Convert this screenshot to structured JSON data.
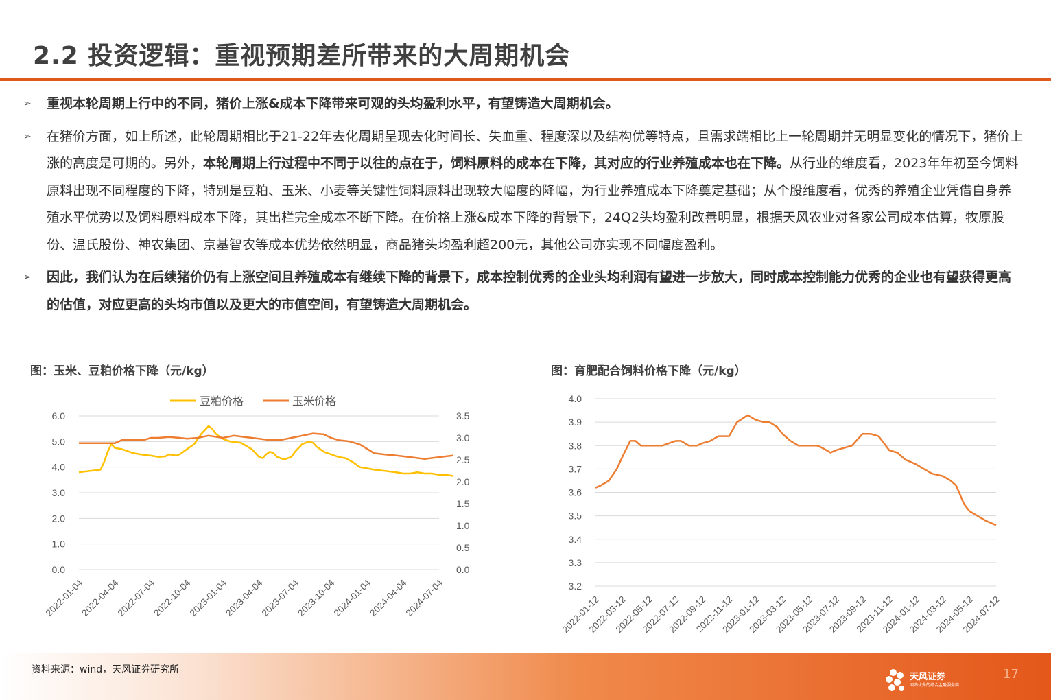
{
  "header": {
    "title": "2.2 投资逻辑：重视预期差所带来的大周期机会"
  },
  "bullets": {
    "b1": "重视本轮周期上行中的不同，猪价上涨&成本下降带来可观的头均盈利水平，有望铸造大周期机会。",
    "b2_a": "在猪价方面，如上所述，此轮周期相比于21-22年去化周期呈现去化时间长、失血重、程度深以及结构优等特点，且需求端相比上一轮周期并无明显变化的情况下，猪价上涨的高度是可期的。另外，",
    "b2_b": "本轮周期上行过程中不同于以往的点在于，饲料原料的成本在下降，其对应的行业养殖成本也在下降。",
    "b2_c": "从行业的维度看，2023年年初至今饲料原料出现不同程度的下降，特别是豆粕、玉米、小麦等关键性饲料原料出现较大幅度的降幅，为行业养殖成本下降奠定基础；从个股维度看，优秀的养殖企业凭借自身养殖水平优势以及饲料原料成本下降，其出栏完全成本不断下降。在价格上涨&成本下降的背景下，24Q2头均盈利改善明显，根据天风农业对各家公司成本估算，牧原股份、温氏股份、神农集团、京基智农等成本优势依然明显，商品猪头均盈利超200元，其他公司亦实现不同幅度盈利。",
    "b3": "因此，我们认为在后续猪价仍有上涨空间且养殖成本有继续下降的背景下，成本控制优秀的企业头均利润有望进一步放大，同时成本控制能力优秀的企业也有望获得更高的估值，对应更高的头均市值以及更大的市值空间，有望铸造大周期机会。",
    "arrow": "➢"
  },
  "figures": {
    "left_title": "图：玉米、豆粕价格下降（元/kg）",
    "right_title": "图：育肥配合饲料价格下降（元/kg）"
  },
  "chart_data": [
    {
      "type": "line",
      "title": "图：玉米、豆粕价格下降（元/kg）",
      "x_ticks": [
        "2022-01-04",
        "2022-04-04",
        "2022-07-04",
        "2022-10-04",
        "2023-01-04",
        "2023-04-04",
        "2023-07-04",
        "2023-10-04",
        "2024-01-04",
        "2024-04-04",
        "2024-07-04"
      ],
      "y_left_ticks": [
        "0.0",
        "1.0",
        "2.0",
        "3.0",
        "4.0",
        "5.0",
        "6.0"
      ],
      "y_right_ticks": [
        "0.0",
        "0.5",
        "1.0",
        "1.5",
        "2.0",
        "2.5",
        "3.0",
        "3.5"
      ],
      "ylim_left": [
        0,
        6
      ],
      "ylim_right": [
        0,
        3.5
      ],
      "legend": "top",
      "grid": true,
      "series": [
        {
          "name": "豆粕价格",
          "axis": "left",
          "color": "#ffc000",
          "x": [
            0,
            0.3,
            0.5,
            0.6,
            0.7,
            0.8,
            0.9,
            1.0,
            1.2,
            1.5,
            1.7,
            2.0,
            2.2,
            2.4,
            2.5,
            2.7,
            2.8,
            3.0,
            3.2,
            3.4,
            3.5,
            3.6,
            3.7,
            3.8,
            4.0,
            4.2,
            4.5,
            4.8,
            5.0,
            5.1,
            5.2,
            5.3,
            5.4,
            5.5,
            5.6,
            5.7,
            5.9,
            6.0,
            6.2,
            6.4,
            6.5,
            6.6,
            6.7,
            6.8,
            7.0,
            7.2,
            7.4,
            7.6,
            7.8,
            8.0,
            8.2,
            8.5,
            8.8,
            9.0,
            9.2,
            9.4,
            9.6,
            9.8,
            10.0,
            10.2,
            10.4
          ],
          "y": [
            3.8,
            3.85,
            3.88,
            3.9,
            4.2,
            4.6,
            4.9,
            4.75,
            4.7,
            4.55,
            4.5,
            4.45,
            4.4,
            4.42,
            4.5,
            4.45,
            4.5,
            4.7,
            4.9,
            5.3,
            5.45,
            5.6,
            5.5,
            5.3,
            5.1,
            5.0,
            4.95,
            4.7,
            4.4,
            4.35,
            4.5,
            4.6,
            4.55,
            4.4,
            4.35,
            4.3,
            4.4,
            4.6,
            4.9,
            5.0,
            4.95,
            4.8,
            4.7,
            4.6,
            4.5,
            4.4,
            4.35,
            4.2,
            4.0,
            3.95,
            3.9,
            3.85,
            3.8,
            3.75,
            3.75,
            3.8,
            3.75,
            3.75,
            3.7,
            3.7,
            3.65
          ]
        },
        {
          "name": "玉米价格",
          "axis": "right",
          "color": "#ed7d31",
          "x": [
            0,
            0.5,
            1.0,
            1.2,
            1.5,
            1.8,
            2.0,
            2.2,
            2.5,
            2.8,
            3.0,
            3.3,
            3.6,
            4.0,
            4.3,
            4.6,
            5.0,
            5.3,
            5.6,
            5.9,
            6.2,
            6.5,
            6.8,
            7.0,
            7.2,
            7.5,
            7.8,
            8.0,
            8.2,
            8.5,
            8.8,
            9.0,
            9.3,
            9.6,
            9.9,
            10.2,
            10.4
          ],
          "y": [
            2.88,
            2.88,
            2.88,
            2.95,
            2.95,
            2.95,
            3.0,
            3.0,
            3.02,
            3.0,
            2.98,
            3.0,
            3.05,
            3.0,
            3.05,
            3.02,
            2.98,
            2.95,
            2.95,
            3.0,
            3.05,
            3.1,
            3.08,
            3.0,
            2.95,
            2.92,
            2.85,
            2.75,
            2.65,
            2.62,
            2.6,
            2.58,
            2.55,
            2.52,
            2.55,
            2.58,
            2.6
          ]
        }
      ]
    },
    {
      "type": "line",
      "title": "图：育肥配合饲料价格下降（元/kg）",
      "x_ticks": [
        "2022-01-12",
        "2022-03-12",
        "2022-05-12",
        "2022-07-12",
        "2022-09-12",
        "2022-11-12",
        "2023-01-12",
        "2023-03-12",
        "2023-05-12",
        "2023-07-12",
        "2023-09-12",
        "2023-11-12",
        "2024-01-12",
        "2024-03-12",
        "2024-05-12",
        "2024-07-12"
      ],
      "y_ticks": [
        "3.2",
        "3.3",
        "3.4",
        "3.5",
        "3.6",
        "3.7",
        "3.8",
        "3.9",
        "4.0"
      ],
      "ylim": [
        3.2,
        4.0
      ],
      "grid": true,
      "series": [
        {
          "name": "",
          "color": "#ed7d31",
          "x": [
            0,
            0.2,
            0.5,
            0.8,
            1.0,
            1.3,
            1.5,
            1.7,
            2.0,
            2.2,
            2.5,
            3.0,
            3.2,
            3.5,
            3.8,
            4.0,
            4.3,
            4.6,
            5.0,
            5.3,
            5.7,
            6.0,
            6.3,
            6.5,
            6.8,
            7.0,
            7.3,
            7.6,
            8.0,
            8.3,
            8.5,
            8.8,
            9.0,
            9.3,
            9.6,
            10.0,
            10.3,
            10.6,
            11.0,
            11.3,
            11.6,
            12.0,
            12.3,
            12.6,
            13.0,
            13.3,
            13.5,
            13.8,
            14.0,
            14.3,
            14.6,
            15.0
          ],
          "y": [
            3.62,
            3.63,
            3.65,
            3.7,
            3.75,
            3.82,
            3.82,
            3.8,
            3.8,
            3.8,
            3.8,
            3.82,
            3.82,
            3.8,
            3.8,
            3.81,
            3.82,
            3.84,
            3.84,
            3.9,
            3.93,
            3.91,
            3.9,
            3.9,
            3.88,
            3.85,
            3.82,
            3.8,
            3.8,
            3.8,
            3.79,
            3.77,
            3.78,
            3.79,
            3.8,
            3.85,
            3.85,
            3.84,
            3.78,
            3.77,
            3.74,
            3.72,
            3.7,
            3.68,
            3.67,
            3.65,
            3.63,
            3.55,
            3.52,
            3.5,
            3.48,
            3.46
          ]
        }
      ]
    }
  ],
  "footer": {
    "source": "资料来源：wind，天风证券研究所",
    "logo_text": "天风证券",
    "logo_sub": "国内优秀的综合金融服务商",
    "page_number": "17"
  }
}
